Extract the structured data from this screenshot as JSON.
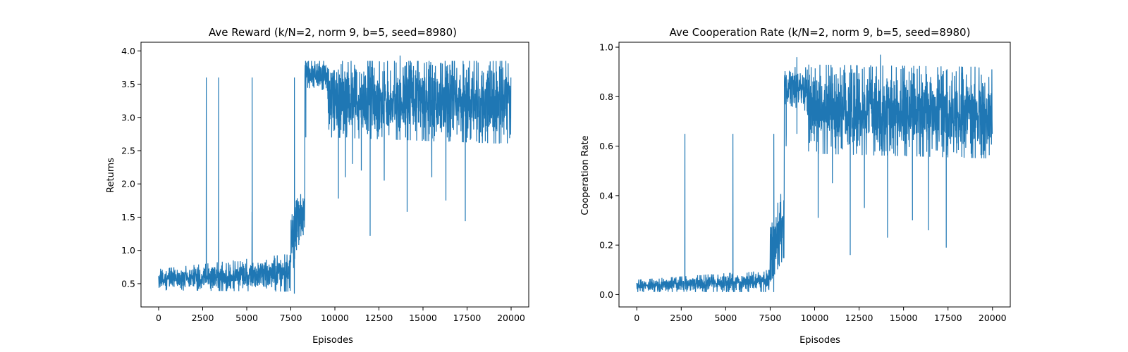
{
  "chart_data": [
    {
      "type": "line",
      "title": "Ave Reward (k/N=2, norm 9, b=5, seed=8980)",
      "xlabel": "Episodes",
      "ylabel": "Returns",
      "xlim": [
        -1000,
        21000
      ],
      "ylim": [
        0.15,
        4.13
      ],
      "xticks": [
        "0",
        "2500",
        "5000",
        "7500",
        "10000",
        "12500",
        "15000",
        "17500",
        "20000"
      ],
      "yticks": [
        "0.5",
        "1.0",
        "1.5",
        "2.0",
        "2.5",
        "3.0",
        "3.5",
        "4.0"
      ],
      "grid": false,
      "color": "#1f77b4",
      "series": [
        {
          "segments": [
            {
              "x0": 0,
              "x1": 7500,
              "lo_start": 0.4,
              "lo_end": 0.38,
              "hi_start": 0.72,
              "hi_end": 0.95
            },
            {
              "x0": 7500,
              "x1": 8300,
              "lo_start": 0.6,
              "lo_end": 1.3,
              "hi_start": 1.6,
              "hi_end": 2.0
            },
            {
              "x0": 8300,
              "x1": 9600,
              "lo_start": 3.45,
              "lo_end": 3.4,
              "hi_start": 3.85,
              "hi_end": 3.85
            },
            {
              "x0": 9600,
              "x1": 20000,
              "lo_start": 2.7,
              "lo_end": 2.6,
              "hi_start": 3.85,
              "hi_end": 3.85
            }
          ],
          "spikes": [
            {
              "x": 3400,
              "y": 1.3
            },
            {
              "x": 5300,
              "y": 1.58
            },
            {
              "x": 2700,
              "y": 1.28
            },
            {
              "x": 7700,
              "y": 0.35
            },
            {
              "x": 8350,
              "y": 2.7
            },
            {
              "x": 10200,
              "y": 1.78
            },
            {
              "x": 10600,
              "y": 2.1
            },
            {
              "x": 11500,
              "y": 2.2
            },
            {
              "x": 12000,
              "y": 1.22
            },
            {
              "x": 12800,
              "y": 2.05
            },
            {
              "x": 14100,
              "y": 1.58
            },
            {
              "x": 15500,
              "y": 2.1
            },
            {
              "x": 16300,
              "y": 1.75
            },
            {
              "x": 17400,
              "y": 1.44
            },
            {
              "x": 13700,
              "y": 3.93
            },
            {
              "x": 11000,
              "y": 2.3
            }
          ]
        }
      ]
    },
    {
      "type": "line",
      "title": "Ave Cooperation Rate (k/N=2, norm 9, b=5, seed=8980)",
      "xlabel": "Episodes",
      "ylabel": "Cooperation Rate",
      "xlim": [
        -1000,
        21000
      ],
      "ylim": [
        -0.05,
        1.02
      ],
      "xticks": [
        "0",
        "2500",
        "5000",
        "7500",
        "10000",
        "12500",
        "15000",
        "17500",
        "20000"
      ],
      "yticks": [
        "0.0",
        "0.2",
        "0.4",
        "0.6",
        "0.8",
        "1.0"
      ],
      "grid": false,
      "color": "#1f77b4",
      "series": [
        {
          "segments": [
            {
              "x0": 0,
              "x1": 7500,
              "lo_start": 0.01,
              "lo_end": 0.01,
              "hi_start": 0.06,
              "hi_end": 0.1
            },
            {
              "x0": 7500,
              "x1": 8300,
              "lo_start": 0.05,
              "lo_end": 0.15,
              "hi_start": 0.28,
              "hi_end": 0.45
            },
            {
              "x0": 8300,
              "x1": 9600,
              "lo_start": 0.77,
              "lo_end": 0.74,
              "hi_start": 0.92,
              "hi_end": 0.92
            },
            {
              "x0": 9600,
              "x1": 20000,
              "lo_start": 0.57,
              "lo_end": 0.55,
              "hi_start": 0.93,
              "hi_end": 0.92
            }
          ],
          "spikes": [
            {
              "x": 2700,
              "y": 0.18
            },
            {
              "x": 5400,
              "y": 0.25
            },
            {
              "x": 7700,
              "y": 0.01
            },
            {
              "x": 8400,
              "y": 0.6
            },
            {
              "x": 10200,
              "y": 0.31
            },
            {
              "x": 11000,
              "y": 0.45
            },
            {
              "x": 12000,
              "y": 0.16
            },
            {
              "x": 12800,
              "y": 0.35
            },
            {
              "x": 14100,
              "y": 0.23
            },
            {
              "x": 15500,
              "y": 0.3
            },
            {
              "x": 16400,
              "y": 0.26
            },
            {
              "x": 17400,
              "y": 0.19
            },
            {
              "x": 13700,
              "y": 0.97
            },
            {
              "x": 9000,
              "y": 0.96
            }
          ]
        }
      ]
    }
  ]
}
